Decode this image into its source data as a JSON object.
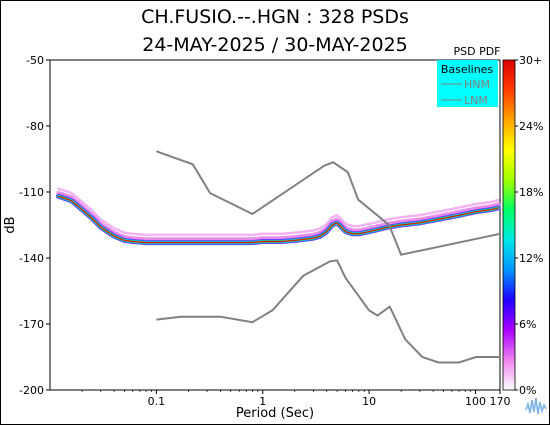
{
  "header": {
    "title": "CH.FUSIO.--.HGN : 328 PSDs",
    "date_range": "24-MAY-2025 / 30-MAY-2025"
  },
  "chart_data": {
    "type": "heatmap",
    "xlabel": "Period (Sec)",
    "ylabel": "dB",
    "x_scale": "log",
    "xlim": [
      0.01,
      170
    ],
    "ylim": [
      -200,
      -50
    ],
    "x_ticks": [
      0.1,
      1,
      10,
      100,
      170
    ],
    "x_tick_labels": [
      "0.1",
      "1",
      "10",
      "100",
      "170"
    ],
    "y_ticks": [
      -50,
      -80,
      -110,
      -140,
      -170,
      -200
    ],
    "y_tick_labels": [
      "-50",
      "-80",
      "-110",
      "-140",
      "-170",
      "-200"
    ],
    "grid": false,
    "colorbar": {
      "title": "PSD PDF",
      "ticks": [
        0,
        6,
        12,
        18,
        24,
        30
      ],
      "tick_labels": [
        "0%",
        "6%",
        "12%",
        "18%",
        "24%",
        "30+"
      ],
      "colors": [
        "#ffffff",
        "#ee82ee",
        "#aa00ff",
        "#1e00ff",
        "#0096ff",
        "#00e6e6",
        "#00ff64",
        "#a0ff00",
        "#ffff00",
        "#ffa500",
        "#ff3c00",
        "#dc0000"
      ]
    },
    "legend": {
      "title": "Baselines",
      "placement": "top-right",
      "entries": [
        "HNM",
        "LNM"
      ],
      "background": "#00ffff",
      "line_color": "#808080"
    },
    "series": [
      {
        "name": "HNM",
        "x": [
          0.1,
          0.22,
          0.32,
          0.8,
          3.8,
          4.6,
          6.3,
          7.9,
          15.4,
          20,
          170
        ],
        "y": [
          -91.5,
          -97.4,
          -110.5,
          -120,
          -98,
          -96.5,
          -101,
          -113.5,
          -125,
          -138.5,
          -129
        ]
      },
      {
        "name": "LNM",
        "x": [
          0.1,
          0.17,
          0.4,
          0.8,
          1.24,
          2.4,
          4.3,
          5,
          6,
          10,
          12,
          15.6,
          21.9,
          31.6,
          45,
          70,
          101,
          154,
          170
        ],
        "y": [
          -168,
          -166.7,
          -166.7,
          -169.2,
          -163.7,
          -148.1,
          -141.5,
          -141.1,
          -149,
          -163.8,
          -166.2,
          -162.1,
          -177,
          -185,
          -187.5,
          -187.5,
          -185,
          -185,
          -185
        ]
      },
      {
        "name": "PSD mode",
        "x": [
          0.012,
          0.014,
          0.016,
          0.02,
          0.025,
          0.03,
          0.04,
          0.05,
          0.06,
          0.08,
          0.1,
          0.15,
          0.2,
          0.3,
          0.5,
          0.8,
          1,
          1.5,
          2,
          3,
          3.5,
          4,
          4.5,
          5,
          5.5,
          6,
          7,
          8,
          10,
          15,
          20,
          30,
          50,
          80,
          100,
          140,
          170
        ],
        "y": [
          -112,
          -113,
          -114,
          -118,
          -122,
          -126,
          -130,
          -132,
          -132.5,
          -133,
          -133,
          -133,
          -133,
          -133,
          -133,
          -133,
          -132.5,
          -132.5,
          -132,
          -131,
          -130,
          -128,
          -125,
          -124,
          -126,
          -128,
          -129,
          -129,
          -128,
          -126,
          -125,
          -124,
          -122,
          -120,
          -119,
          -118,
          -117
        ]
      }
    ]
  }
}
